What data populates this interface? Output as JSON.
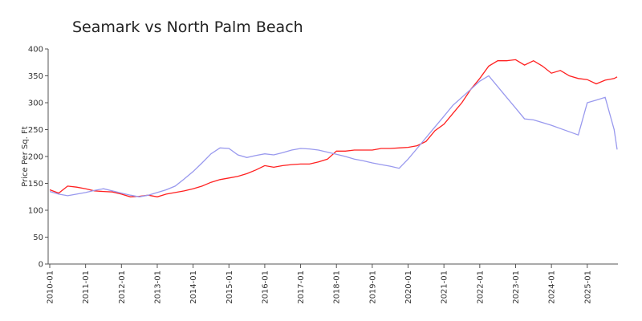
{
  "chart_data": {
    "type": "line",
    "title": "Seamark vs North Palm Beach",
    "y_label": "Price Per Sq. Ft",
    "x": [
      "2010-01",
      "2010-04",
      "2010-07",
      "2010-10",
      "2011-01",
      "2011-04",
      "2011-07",
      "2011-10",
      "2012-01",
      "2012-04",
      "2012-07",
      "2012-10",
      "2013-01",
      "2013-04",
      "2013-07",
      "2013-10",
      "2014-01",
      "2014-04",
      "2014-07",
      "2014-10",
      "2015-01",
      "2015-04",
      "2015-07",
      "2015-10",
      "2016-01",
      "2016-04",
      "2016-07",
      "2016-10",
      "2017-01",
      "2017-04",
      "2017-07",
      "2017-10",
      "2018-01",
      "2018-04",
      "2018-07",
      "2018-10",
      "2019-01",
      "2019-04",
      "2019-07",
      "2019-10",
      "2020-01",
      "2020-04",
      "2020-07",
      "2020-10",
      "2021-01",
      "2021-04",
      "2021-07",
      "2021-10",
      "2022-01",
      "2022-04",
      "2022-07",
      "2022-10",
      "2023-01",
      "2023-04",
      "2023-07",
      "2023-10",
      "2024-01",
      "2024-04",
      "2024-07",
      "2024-10",
      "2025-01",
      "2025-04",
      "2025-07",
      "2025-10",
      "2025-11"
    ],
    "series": [
      {
        "color": "#ff2020",
        "values": [
          138,
          132,
          145,
          143,
          140,
          136,
          135,
          134,
          130,
          125,
          126,
          128,
          125,
          130,
          133,
          136,
          140,
          145,
          152,
          157,
          160,
          163,
          168,
          175,
          183,
          180,
          183,
          185,
          186,
          186,
          190,
          195,
          210,
          210,
          212,
          212,
          212,
          215,
          215,
          216,
          217,
          220,
          228,
          248,
          260,
          280,
          300,
          325,
          345,
          368,
          378,
          378,
          380,
          370,
          378,
          368,
          355,
          360,
          350,
          345,
          343,
          335,
          342,
          345,
          348
        ]
      },
      {
        "color": "#9999ee",
        "values": [
          135,
          130,
          127,
          130,
          133,
          137,
          140,
          136,
          132,
          128,
          125,
          128,
          133,
          138,
          145,
          158,
          172,
          188,
          205,
          216,
          215,
          203,
          198,
          202,
          205,
          203,
          207,
          212,
          215,
          214,
          212,
          208,
          204,
          200,
          195,
          192,
          188,
          185,
          182,
          178,
          195,
          215,
          235,
          255,
          275,
          295,
          310,
          325,
          340,
          350,
          330,
          310,
          290,
          270,
          268,
          263,
          258,
          252,
          246,
          240,
          300,
          305,
          310,
          250,
          213
        ]
      }
    ],
    "xlim": [
      "2010-01",
      "2025-11"
    ],
    "xticks": [
      "2010-01",
      "2011-01",
      "2012-01",
      "2013-01",
      "2014-01",
      "2015-01",
      "2016-01",
      "2017-01",
      "2018-01",
      "2019-01",
      "2020-01",
      "2021-01",
      "2022-01",
      "2023-01",
      "2024-01",
      "2025-01"
    ],
    "ylim": [
      0,
      400
    ],
    "yticks": [
      0,
      50,
      100,
      150,
      200,
      250,
      300,
      350,
      400
    ]
  }
}
